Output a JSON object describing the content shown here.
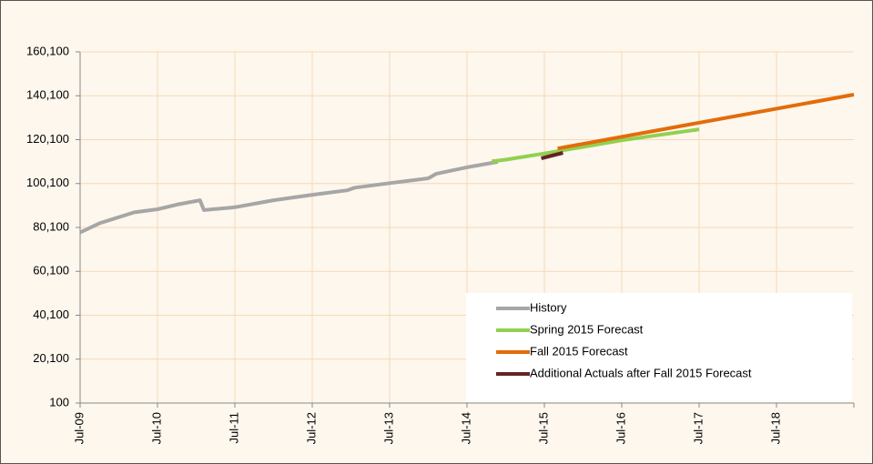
{
  "chart_data": {
    "type": "line",
    "xlim": [
      2009.5,
      2019.5
    ],
    "xticks": [
      {
        "value": 2009.5,
        "label": "Jul-09"
      },
      {
        "value": 2010.5,
        "label": "Jul-10"
      },
      {
        "value": 2011.5,
        "label": "Jul-11"
      },
      {
        "value": 2012.5,
        "label": "Jul-12"
      },
      {
        "value": 2013.5,
        "label": "Jul-13"
      },
      {
        "value": 2014.5,
        "label": "Jul-14"
      },
      {
        "value": 2015.5,
        "label": "Jul-15"
      },
      {
        "value": 2016.5,
        "label": "Jul-16"
      },
      {
        "value": 2017.5,
        "label": "Jul-17"
      },
      {
        "value": 2018.5,
        "label": "Jul-18"
      }
    ],
    "ylim": [
      100,
      160100
    ],
    "yticks": [
      100,
      {
        "value": 20100,
        "label": "20,100"
      },
      {
        "value": 40100,
        "label": "40,100"
      },
      {
        "value": 60100,
        "label": "60,100"
      },
      {
        "value": 80100,
        "label": "80,100"
      },
      {
        "value": 100100,
        "label": "100,100"
      },
      {
        "value": 120100,
        "label": "120,100"
      },
      {
        "value": 140100,
        "label": "140,100"
      },
      {
        "value": 160100,
        "label": "160,100"
      }
    ],
    "grid": true,
    "legend": "lower right",
    "series": [
      {
        "name": "History",
        "color": "#a6a6a6",
        "x": [
          2009.5,
          2009.75,
          2010.2,
          2010.5,
          2010.75,
          2011.05,
          2011.1,
          2011.5,
          2012.0,
          2012.5,
          2012.95,
          2013.05,
          2013.5,
          2014.0,
          2014.1,
          2014.5,
          2014.9
        ],
        "values": [
          77800,
          82000,
          87000,
          88400,
          90500,
          92500,
          88000,
          89300,
          92500,
          95000,
          97000,
          98200,
          100300,
          102500,
          104500,
          107500,
          110000
        ]
      },
      {
        "name": "Spring 2015 Forecast",
        "color": "#92d050",
        "x": [
          2014.82,
          2015.0,
          2015.5,
          2016.0,
          2016.5,
          2017.0,
          2017.5
        ],
        "values": [
          110200,
          111000,
          113800,
          116800,
          119800,
          122300,
          124800
        ]
      },
      {
        "name": "Fall 2015 Forecast",
        "color": "#e36c09",
        "x": [
          2015.67,
          2019.5
        ],
        "values": [
          116100,
          140600
        ]
      },
      {
        "name": "Additional Actuals after Fall 2015 Forecast",
        "color": "#632523",
        "x": [
          2015.46,
          2015.74
        ],
        "values": [
          111600,
          114100
        ]
      }
    ]
  }
}
